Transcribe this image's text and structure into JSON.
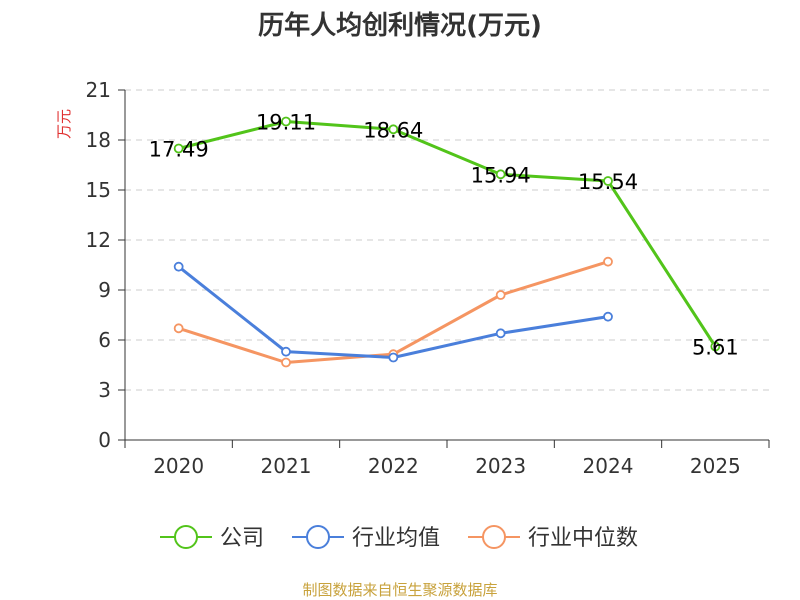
{
  "chart_data": {
    "type": "line",
    "title": "历年人均创利情况(万元)",
    "ylabel": "万元",
    "xlabel": "",
    "categories": [
      "2020",
      "2021",
      "2022",
      "2023",
      "2024",
      "2025"
    ],
    "ylim": [
      0,
      21
    ],
    "yticks": [
      0,
      3,
      6,
      9,
      12,
      15,
      18,
      21
    ],
    "grid": true,
    "legend_position": "bottom-center",
    "series": [
      {
        "name": "公司",
        "color": "#52c41a",
        "values": [
          17.49,
          19.11,
          18.64,
          15.94,
          15.54,
          5.61
        ],
        "data_labels": [
          "17.49",
          "19.11",
          "18.64",
          "15.94",
          "15.54",
          "5.61"
        ]
      },
      {
        "name": "行业均值",
        "color": "#4a7fdb",
        "values": [
          10.4,
          5.3,
          4.95,
          6.4,
          7.4,
          null
        ]
      },
      {
        "name": "行业中位数",
        "color": "#f59562",
        "values": [
          6.7,
          4.65,
          5.15,
          8.7,
          10.7,
          null
        ]
      }
    ]
  },
  "source": {
    "text": "制图数据来自恒生聚源数据库",
    "color": "#c8a23c"
  },
  "unit_color": "#e03030"
}
